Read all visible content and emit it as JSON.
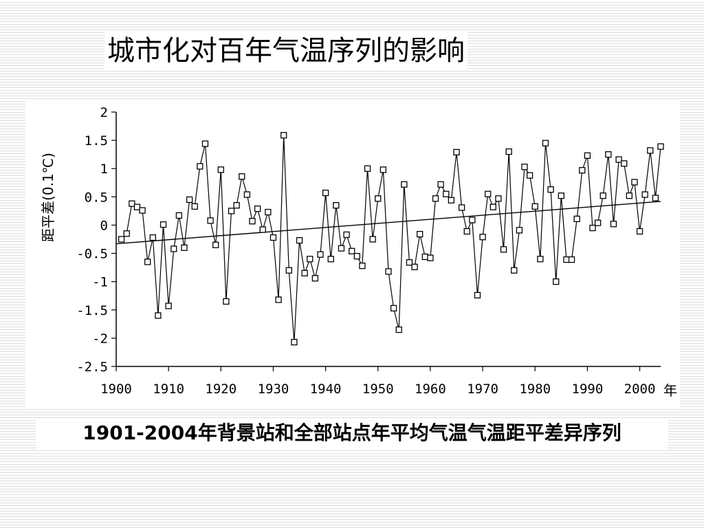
{
  "slide": {
    "title": "城市化对百年气温序列的影响",
    "caption": "1901-2004年背景站和全部站点年平均气温气温距平差异序列"
  },
  "chart_data": {
    "type": "line",
    "title": "",
    "xlabel": "年",
    "ylabel": "距平差(0.1℃)",
    "xlim": [
      1900,
      2004
    ],
    "ylim": [
      -2.5,
      2
    ],
    "xticks": [
      1900,
      1910,
      1920,
      1930,
      1940,
      1950,
      1960,
      1970,
      1980,
      1990,
      2000
    ],
    "yticks": [
      2,
      1.5,
      1,
      0.5,
      0,
      -0.5,
      -1,
      -1.5,
      -2,
      -2.5
    ],
    "ytick_labels": [
      "2",
      "1.5",
      "1",
      "0.5",
      "0",
      "-0.5",
      "-1",
      "-1.5",
      "-2",
      "-2.5"
    ],
    "grid": false,
    "marker": "square",
    "line_color": "#000000",
    "x": [
      1901,
      1902,
      1903,
      1904,
      1905,
      1906,
      1907,
      1908,
      1909,
      1910,
      1911,
      1912,
      1913,
      1914,
      1915,
      1916,
      1917,
      1918,
      1919,
      1920,
      1921,
      1922,
      1923,
      1924,
      1925,
      1926,
      1927,
      1928,
      1929,
      1930,
      1931,
      1932,
      1933,
      1934,
      1935,
      1936,
      1937,
      1938,
      1939,
      1940,
      1941,
      1942,
      1943,
      1944,
      1945,
      1946,
      1947,
      1948,
      1949,
      1950,
      1951,
      1952,
      1953,
      1954,
      1955,
      1956,
      1957,
      1958,
      1959,
      1960,
      1961,
      1962,
      1963,
      1964,
      1965,
      1966,
      1967,
      1968,
      1969,
      1970,
      1971,
      1972,
      1973,
      1974,
      1975,
      1976,
      1977,
      1978,
      1979,
      1980,
      1981,
      1982,
      1983,
      1984,
      1985,
      1986,
      1987,
      1988,
      1989,
      1990,
      1991,
      1992,
      1993,
      1994,
      1995,
      1996,
      1997,
      1998,
      1999,
      2000,
      2001,
      2002,
      2003,
      2004
    ],
    "series": [
      {
        "values": [
          -0.25,
          -0.15,
          0.38,
          0.32,
          0.26,
          -0.65,
          -0.22,
          -1.6,
          0.01,
          -1.43,
          -0.42,
          0.17,
          -0.4,
          0.45,
          0.33,
          1.04,
          1.44,
          0.08,
          -0.35,
          0.98,
          -1.35,
          0.25,
          0.35,
          0.86,
          0.54,
          0.07,
          0.29,
          -0.08,
          0.23,
          -0.22,
          -1.32,
          1.59,
          -0.8,
          -2.07,
          -0.27,
          -0.85,
          -0.6,
          -0.94,
          -0.52,
          0.57,
          -0.6,
          0.35,
          -0.41,
          -0.17,
          -0.46,
          -0.55,
          -0.72,
          1.0,
          -0.25,
          0.47,
          0.98,
          -0.82,
          -1.47,
          -1.85,
          0.72,
          -0.66,
          -0.74,
          -0.16,
          -0.56,
          -0.58,
          0.47,
          0.72,
          0.55,
          0.44,
          1.29,
          0.31,
          -0.11,
          0.09,
          -1.24,
          -0.21,
          0.55,
          0.32,
          0.47,
          -0.43,
          1.3,
          -0.8,
          -0.09,
          1.03,
          0.88,
          0.33,
          -0.6,
          1.45,
          0.63,
          -1.0,
          0.52,
          -0.61,
          -0.61,
          0.11,
          0.97,
          1.23,
          -0.05,
          0.04,
          0.52,
          1.25,
          0.02,
          1.16,
          1.09,
          0.52,
          0.76,
          -0.11,
          0.54,
          1.32,
          0.48,
          1.39
        ]
      }
    ],
    "trend": {
      "x": [
        1900,
        2004
      ],
      "y": [
        -0.33,
        0.42
      ]
    }
  }
}
